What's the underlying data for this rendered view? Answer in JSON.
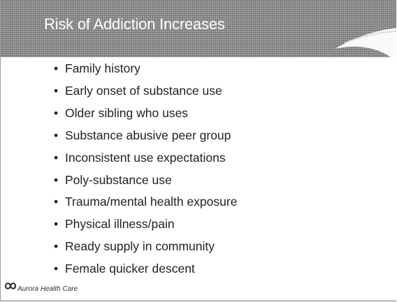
{
  "header": {
    "title": "Risk of Addiction Increases"
  },
  "bullets": [
    "Family history",
    "Early onset of substance use",
    "Older sibling who uses",
    "Substance abusive peer group",
    "Inconsistent use expectations",
    "Poly-substance use",
    "Trauma/mental health exposure",
    "Physical illness/pain",
    "Ready supply in community",
    "Female quicker descent"
  ],
  "footer": {
    "logo": "Aurora Health Care"
  }
}
